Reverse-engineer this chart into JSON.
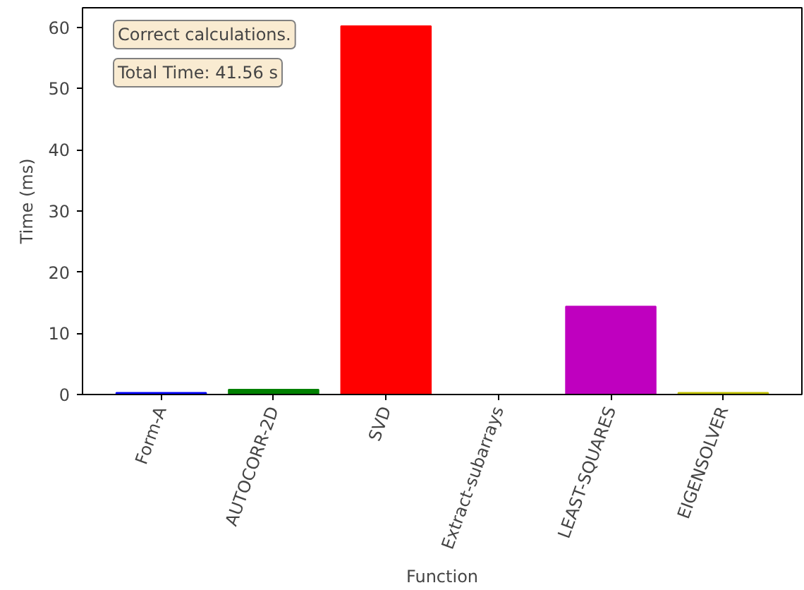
{
  "chart_data": {
    "type": "bar",
    "xlabel": "Function",
    "ylabel": "Time (ms)",
    "categories": [
      "Form-A",
      "AUTOCORR-2D",
      "SVD",
      "Extract-subarrays",
      "LEAST-SQUARES",
      "EIGENSOLVER"
    ],
    "values": [
      0.3,
      0.8,
      60.2,
      0,
      14.4,
      0.3
    ],
    "colors": [
      "#0000ff",
      "#008000",
      "#ff0000",
      "#00bfbf",
      "#bf00bf",
      "#bfbf00"
    ],
    "ylim": [
      0,
      63.2
    ],
    "yticks": [
      0,
      10,
      20,
      30,
      40,
      50,
      60
    ],
    "grid": false,
    "annotations": [
      "Correct calculations.",
      "Total Time: 41.56 s"
    ]
  }
}
